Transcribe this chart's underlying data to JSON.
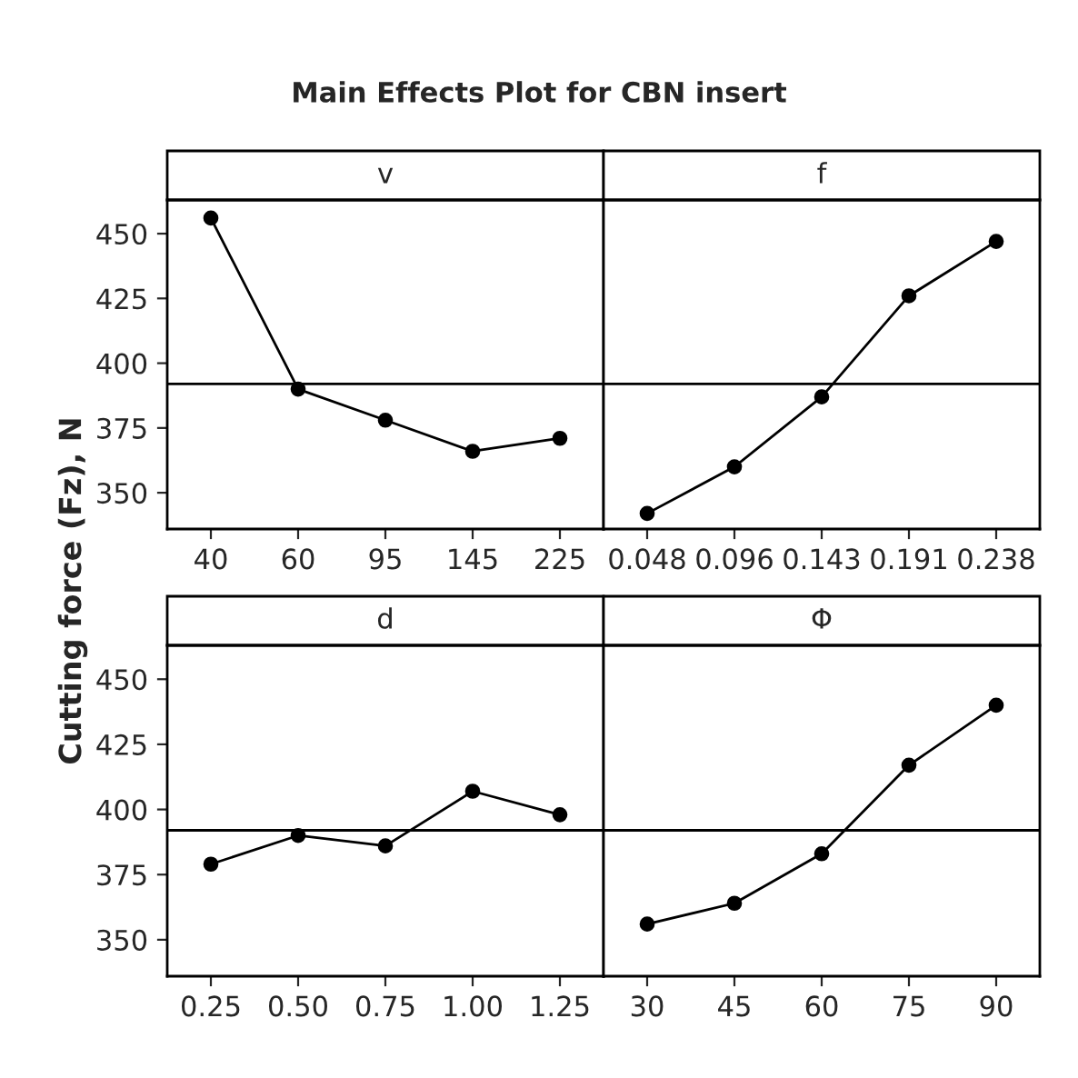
{
  "chart_data": [
    {
      "type": "line",
      "title": "Main Effects Plot for CBN insert",
      "ylabel": "Cutting force (Fz), N",
      "xlabel": "v",
      "categories": [
        "40",
        "60",
        "95",
        "145",
        "225"
      ],
      "values": [
        456,
        390,
        378,
        366,
        371
      ],
      "color": "#000000",
      "ylim": [
        336,
        463
      ],
      "yticks": [
        350,
        375,
        400,
        425,
        450
      ],
      "ref_lines": [
        {
          "axis": "y",
          "value": 392
        }
      ],
      "marker": "circle",
      "line_style": "solid",
      "grid": false,
      "legend": false
    },
    {
      "type": "line",
      "xlabel": "f",
      "categories": [
        "0.048",
        "0.096",
        "0.143",
        "0.191",
        "0.238"
      ],
      "values": [
        342,
        360,
        387,
        426,
        447
      ],
      "color": "#000000",
      "ylim": [
        336,
        463
      ],
      "tick_labels": "x",
      "ref_lines": [
        {
          "axis": "y",
          "value": 392
        }
      ],
      "marker": "circle",
      "line_style": "solid",
      "grid": false,
      "legend": false
    },
    {
      "type": "line",
      "xlabel": "d",
      "categories": [
        "0.25",
        "0.50",
        "0.75",
        "1.00",
        "1.25"
      ],
      "values": [
        379,
        390,
        386,
        407,
        398
      ],
      "color": "#000000",
      "ylim": [
        336,
        463
      ],
      "yticks": [
        350,
        375,
        400,
        425,
        450
      ],
      "ref_lines": [
        {
          "axis": "y",
          "value": 392
        }
      ],
      "marker": "circle",
      "line_style": "solid",
      "grid": false,
      "legend": false
    },
    {
      "type": "line",
      "xlabel": "Φ",
      "categories": [
        "30",
        "45",
        "60",
        "75",
        "90"
      ],
      "values": [
        356,
        364,
        383,
        417,
        440
      ],
      "color": "#000000",
      "ylim": [
        336,
        463
      ],
      "tick_labels": "x",
      "ref_lines": [
        {
          "axis": "y",
          "value": 392
        }
      ],
      "marker": "circle",
      "line_style": "solid",
      "grid": false,
      "legend": false
    }
  ]
}
